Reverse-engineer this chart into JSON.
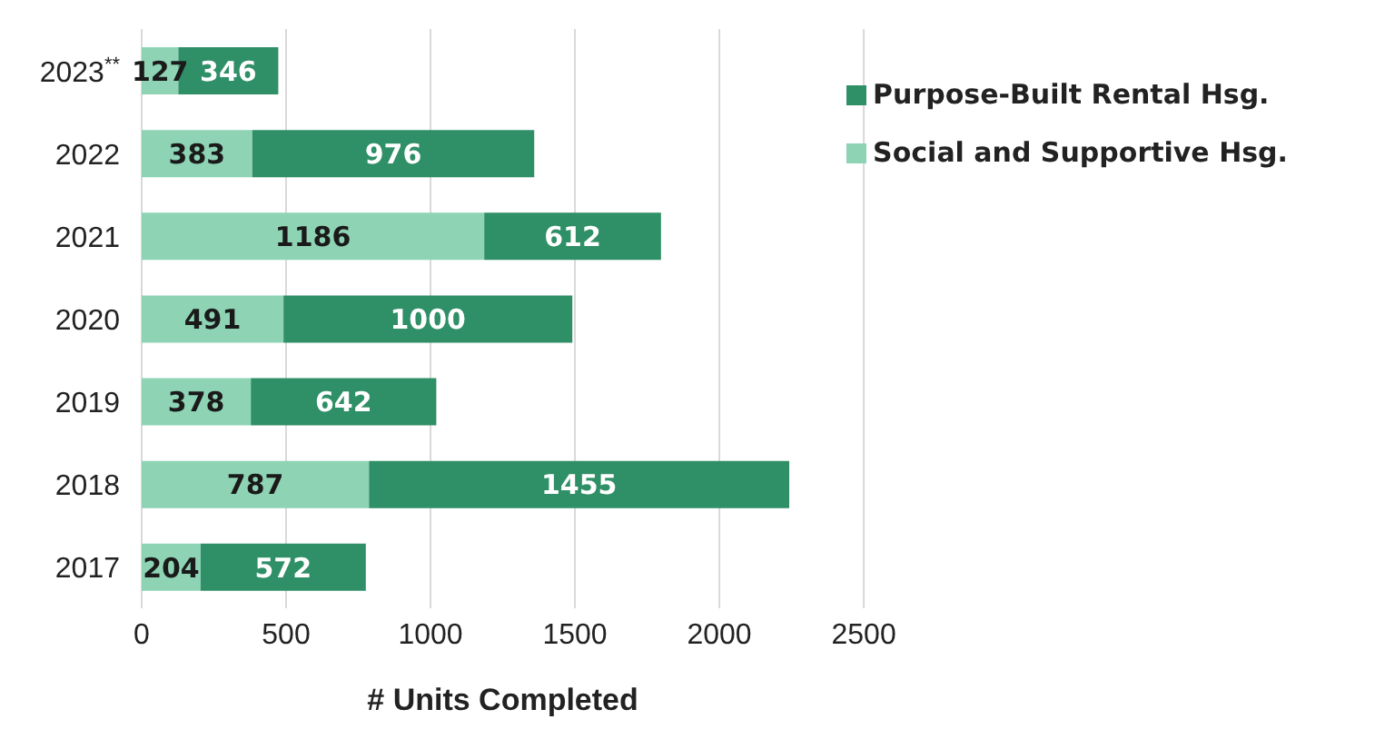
{
  "chart_data": {
    "type": "bar",
    "orientation": "horizontal",
    "stacked": true,
    "categories": [
      "2023$^{**}$",
      "2022",
      "2021",
      "2020",
      "2019",
      "2018",
      "2017"
    ],
    "series": [
      {
        "name": "Social and Supportive Hsg.",
        "color": "#8dd3b4",
        "values": [
          127,
          383,
          1186,
          491,
          378,
          787,
          204
        ]
      },
      {
        "name": "Purpose-Built Rental Hsg.",
        "color": "#2f8f66",
        "values": [
          346,
          976,
          612,
          1000,
          642,
          1455,
          572
        ]
      }
    ],
    "xlabel": "# Units Completed",
    "xlim": [
      0,
      2500
    ],
    "xticks": [
      0,
      500,
      1000,
      1500,
      2000,
      2500
    ],
    "grid": "x",
    "legend": "top right",
    "data_labels": true
  }
}
